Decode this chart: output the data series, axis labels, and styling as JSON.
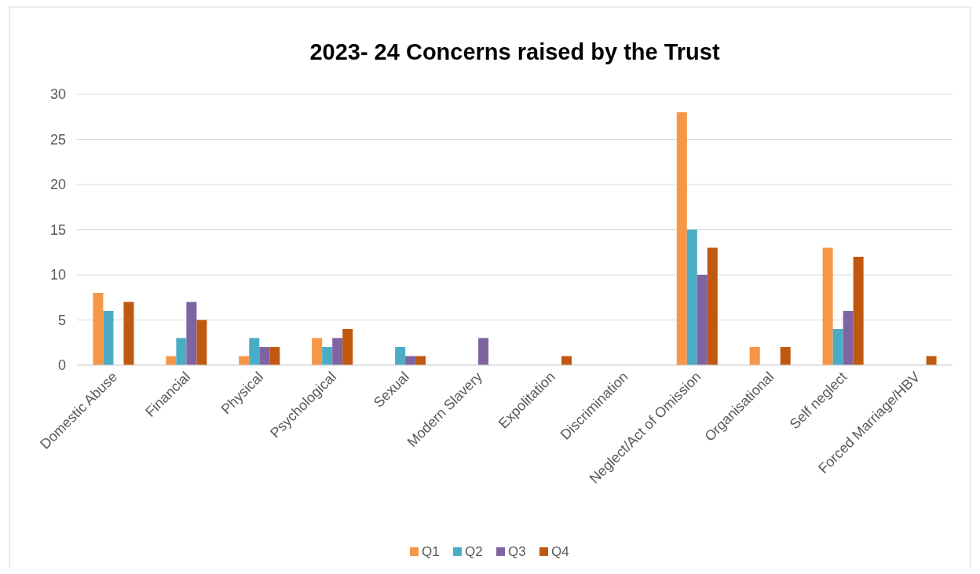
{
  "chart_data": {
    "type": "bar",
    "title": "2023- 24 Concerns raised by the Trust",
    "categories": [
      "Domestic  Abuse",
      "Financial",
      "Physical",
      "Psychological",
      "Sexual",
      "Modern Slavery",
      "Expolitation",
      "Discrimination",
      "Neglect/Act of Omission",
      "Organisational",
      "Self neglect",
      "Forced Marriage/HBV"
    ],
    "series": [
      {
        "name": "Q1",
        "color": "#f79646",
        "values": [
          8,
          1,
          1,
          3,
          0,
          0,
          0,
          0,
          28,
          2,
          13,
          0
        ]
      },
      {
        "name": "Q2",
        "color": "#4bacc6",
        "values": [
          6,
          3,
          3,
          2,
          2,
          0,
          0,
          0,
          15,
          0,
          4,
          0
        ]
      },
      {
        "name": "Q3",
        "color": "#8064a2",
        "values": [
          0,
          7,
          2,
          3,
          1,
          3,
          0,
          0,
          10,
          0,
          6,
          0
        ]
      },
      {
        "name": "Q4",
        "color": "#c0590f",
        "values": [
          7,
          5,
          2,
          4,
          1,
          0,
          1,
          0,
          13,
          2,
          12,
          1
        ]
      }
    ],
    "ylim": [
      0,
      30
    ],
    "yticks": [
      0,
      5,
      10,
      15,
      20,
      25,
      30
    ],
    "grid": "y",
    "legend": "bottom"
  }
}
